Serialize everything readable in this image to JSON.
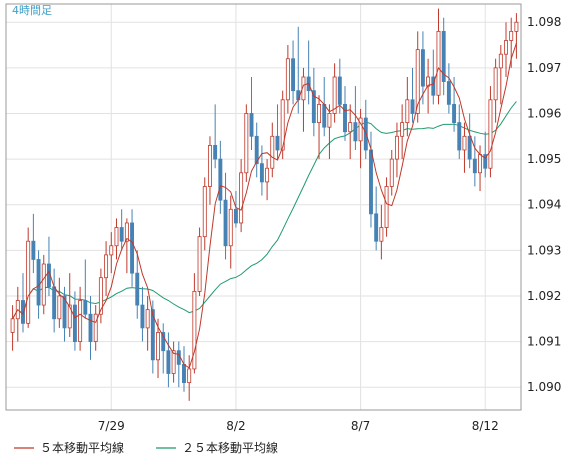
{
  "timeframe_label": "4時間足",
  "colors": {
    "background": "#ffffff",
    "grid": "#e2e2e2",
    "axis": "#9a9a9a",
    "up_candle": "#c0392b",
    "down_candle": "#4682b4",
    "ma5": "#c0392b",
    "ma25": "#1f9b6b"
  },
  "chart_data": {
    "type": "candlestick",
    "ylim": [
      1.0895,
      1.0984
    ],
    "y_ticks": [
      "1.090",
      "1.091",
      "1.092",
      "1.093",
      "1.094",
      "1.095",
      "1.096",
      "1.097",
      "1.098"
    ],
    "x_ticks": [
      {
        "label": "7/29",
        "index": 19
      },
      {
        "label": "8/2",
        "index": 43
      },
      {
        "label": "8/7",
        "index": 67
      },
      {
        "label": "8/12",
        "index": 91
      }
    ],
    "grid": true,
    "legend_position": "bottom",
    "series": [
      {
        "name": "５本移動平均線",
        "color": "#c0392b"
      },
      {
        "name": "２５本移動平均線",
        "color": "#1f9b6b"
      }
    ],
    "candles": [
      [
        1.0912,
        1.0918,
        1.0908,
        1.0915
      ],
      [
        1.0915,
        1.0922,
        1.091,
        1.0919
      ],
      [
        1.0919,
        1.0925,
        1.0912,
        1.0914
      ],
      [
        1.0914,
        1.0935,
        1.0913,
        1.0932
      ],
      [
        1.0932,
        1.0938,
        1.0925,
        1.0928
      ],
      [
        1.0928,
        1.093,
        1.0915,
        1.0918
      ],
      [
        1.0918,
        1.0929,
        1.0916,
        1.0927
      ],
      [
        1.0927,
        1.0933,
        1.092,
        1.0922
      ],
      [
        1.0922,
        1.0926,
        1.0912,
        1.0915
      ],
      [
        1.0915,
        1.0924,
        1.0913,
        1.092
      ],
      [
        1.092,
        1.0922,
        1.091,
        1.0913
      ],
      [
        1.0913,
        1.0925,
        1.0911,
        1.0918
      ],
      [
        1.0918,
        1.0921,
        1.0908,
        1.091
      ],
      [
        1.091,
        1.0922,
        1.0908,
        1.0919
      ],
      [
        1.0919,
        1.0928,
        1.0915,
        1.0916
      ],
      [
        1.0916,
        1.092,
        1.0906,
        1.091
      ],
      [
        1.091,
        1.0918,
        1.0908,
        1.0916
      ],
      [
        1.0916,
        1.0926,
        1.0914,
        1.0924
      ],
      [
        1.0924,
        1.0932,
        1.092,
        1.0929
      ],
      [
        1.0929,
        1.0934,
        1.0925,
        1.0931
      ],
      [
        1.0931,
        1.0937,
        1.0928,
        1.0935
      ],
      [
        1.0935,
        1.0939,
        1.093,
        1.0932
      ],
      [
        1.0932,
        1.0937,
        1.0925,
        1.0936
      ],
      [
        1.0936,
        1.0939,
        1.0922,
        1.0925
      ],
      [
        1.0925,
        1.093,
        1.0915,
        1.0918
      ],
      [
        1.0918,
        1.0922,
        1.091,
        1.0913
      ],
      [
        1.0913,
        1.092,
        1.0908,
        1.0917
      ],
      [
        1.0917,
        1.0919,
        1.0903,
        1.0906
      ],
      [
        1.0906,
        1.0915,
        1.0902,
        1.0912
      ],
      [
        1.0912,
        1.0914,
        1.0903,
        1.0908
      ],
      [
        1.0908,
        1.0912,
        1.09,
        1.0903
      ],
      [
        1.0903,
        1.091,
        1.0901,
        1.0908
      ],
      [
        1.0908,
        1.091,
        1.09,
        1.0905
      ],
      [
        1.0905,
        1.0909,
        1.0899,
        1.0901
      ],
      [
        1.0901,
        1.0907,
        1.0897,
        1.0904
      ],
      [
        1.0904,
        1.0925,
        1.0903,
        1.0921
      ],
      [
        1.0921,
        1.0935,
        1.092,
        1.0933
      ],
      [
        1.0933,
        1.0946,
        1.093,
        1.0944
      ],
      [
        1.0944,
        1.0955,
        1.094,
        1.0953
      ],
      [
        1.0953,
        1.0962,
        1.0948,
        1.095
      ],
      [
        1.095,
        1.0954,
        1.0938,
        1.0941
      ],
      [
        1.0941,
        1.0947,
        1.0928,
        1.0931
      ],
      [
        1.0931,
        1.0942,
        1.0926,
        1.0939
      ],
      [
        1.0939,
        1.0943,
        1.0935,
        1.0936
      ],
      [
        1.0936,
        1.095,
        1.0934,
        1.0947
      ],
      [
        1.0947,
        1.0962,
        1.0945,
        1.096
      ],
      [
        1.096,
        1.0968,
        1.0952,
        1.0955
      ],
      [
        1.0955,
        1.0958,
        1.0946,
        1.0949
      ],
      [
        1.0949,
        1.0953,
        1.0942,
        1.0945
      ],
      [
        1.0945,
        1.095,
        1.0941,
        1.0948
      ],
      [
        1.0948,
        1.0958,
        1.0946,
        1.0955
      ],
      [
        1.0955,
        1.0962,
        1.095,
        1.0952
      ],
      [
        1.0952,
        1.0965,
        1.095,
        1.0963
      ],
      [
        1.0963,
        1.0975,
        1.096,
        1.0972
      ],
      [
        1.0972,
        1.0976,
        1.0962,
        1.0965
      ],
      [
        1.0965,
        1.0979,
        1.096,
        1.0963
      ],
      [
        1.0963,
        1.097,
        1.0956,
        1.0968
      ],
      [
        1.0968,
        1.0976,
        1.0962,
        1.0965
      ],
      [
        1.0965,
        1.097,
        1.0955,
        1.0958
      ],
      [
        1.0958,
        1.0964,
        1.095,
        1.0962
      ],
      [
        1.0962,
        1.0968,
        1.0955,
        1.0957
      ],
      [
        1.0957,
        1.0962,
        1.095,
        1.096
      ],
      [
        1.096,
        1.0971,
        1.0958,
        1.0968
      ],
      [
        1.0968,
        1.0972,
        1.096,
        1.0962
      ],
      [
        1.0962,
        1.0966,
        1.0954,
        1.0956
      ],
      [
        1.0956,
        1.0962,
        1.095,
        1.0958
      ],
      [
        1.0958,
        1.0966,
        1.0952,
        1.0954
      ],
      [
        1.0954,
        1.0961,
        1.0948,
        1.0959
      ],
      [
        1.0959,
        1.0963,
        1.095,
        1.0952
      ],
      [
        1.0952,
        1.0956,
        1.0935,
        1.0938
      ],
      [
        1.0938,
        1.0944,
        1.093,
        1.0932
      ],
      [
        1.0932,
        1.094,
        1.0928,
        1.0935
      ],
      [
        1.0935,
        1.0946,
        1.0933,
        1.0944
      ],
      [
        1.0944,
        1.0952,
        1.0942,
        1.095
      ],
      [
        1.095,
        1.0958,
        1.0946,
        1.0955
      ],
      [
        1.0955,
        1.0962,
        1.095,
        1.0958
      ],
      [
        1.0958,
        1.0968,
        1.0955,
        1.0963
      ],
      [
        1.0963,
        1.097,
        1.0958,
        1.096
      ],
      [
        1.096,
        1.0978,
        1.0958,
        1.0974
      ],
      [
        1.0974,
        1.0978,
        1.0962,
        1.0966
      ],
      [
        1.0966,
        1.0972,
        1.096,
        1.0968
      ],
      [
        1.0968,
        1.0974,
        1.0962,
        1.0964
      ],
      [
        1.0964,
        1.0983,
        1.0962,
        1.0978
      ],
      [
        1.0978,
        1.0981,
        1.0964,
        1.0967
      ],
      [
        1.0967,
        1.0971,
        1.096,
        1.0962
      ],
      [
        1.0962,
        1.0968,
        1.0956,
        1.0958
      ],
      [
        1.0958,
        1.0962,
        1.095,
        1.0952
      ],
      [
        1.0952,
        1.0958,
        1.0947,
        1.0955
      ],
      [
        1.0955,
        1.096,
        1.0948,
        1.095
      ],
      [
        1.095,
        1.0955,
        1.0944,
        1.0947
      ],
      [
        1.0947,
        1.0953,
        1.0943,
        1.0951
      ],
      [
        1.0951,
        1.0956,
        1.0946,
        1.0948
      ],
      [
        1.0948,
        1.0966,
        1.0946,
        1.0963
      ],
      [
        1.0963,
        1.0972,
        1.0958,
        1.097
      ],
      [
        1.097,
        1.0975,
        1.0962,
        1.0973
      ],
      [
        1.0973,
        1.098,
        1.0968,
        1.0976
      ],
      [
        1.0976,
        1.0981,
        1.097,
        1.0978
      ],
      [
        1.0978,
        1.0982,
        1.0972,
        1.098
      ]
    ]
  }
}
